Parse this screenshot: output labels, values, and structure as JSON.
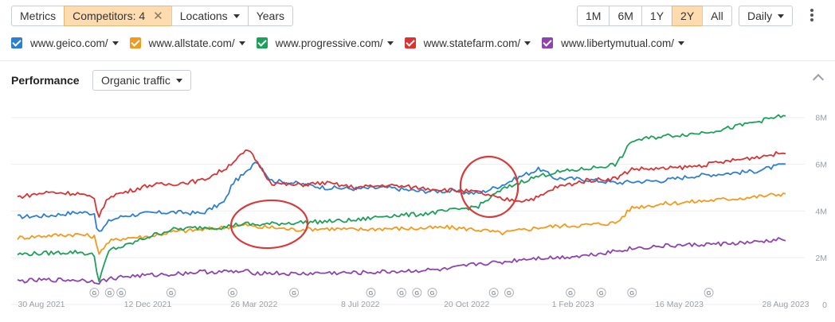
{
  "toolbar": {
    "metrics_label": "Metrics",
    "competitors_label": "Competitors: 4",
    "competitors_clear": "✕",
    "locations_label": "Locations",
    "years_label": "Years"
  },
  "range": {
    "options": [
      "1M",
      "6M",
      "1Y",
      "2Y",
      "All"
    ],
    "selected": "2Y"
  },
  "granularity": "Daily",
  "performance": {
    "title": "Performance",
    "metric": "Organic traffic"
  },
  "colors": {
    "accent_active": "#ffdcb0"
  },
  "chart_data": {
    "type": "line",
    "ylim": [
      0,
      8500000
    ],
    "y_ticks": [
      {
        "v": 0,
        "label": "0"
      },
      {
        "v": 2000000,
        "label": "2M"
      },
      {
        "v": 4000000,
        "label": "4M"
      },
      {
        "v": 6000000,
        "label": "6M"
      },
      {
        "v": 8000000,
        "label": "8M"
      }
    ],
    "x_ticks": [
      "30 Aug 2021",
      "12 Dec 2021",
      "26 Mar 2022",
      "8 Jul 2022",
      "20 Oct 2022",
      "1 Feb 2023",
      "16 May 2023",
      "28 Aug 2023"
    ],
    "x": [
      0,
      0.04,
      0.08,
      0.1,
      0.105,
      0.12,
      0.14,
      0.17,
      0.2,
      0.24,
      0.27,
      0.28,
      0.3,
      0.31,
      0.33,
      0.36,
      0.4,
      0.44,
      0.48,
      0.52,
      0.56,
      0.6,
      0.63,
      0.66,
      0.68,
      0.7,
      0.74,
      0.78,
      0.8,
      0.84,
      0.88,
      0.92,
      0.96,
      1.0
    ],
    "series": [
      {
        "name": "www.geico.com/",
        "color": "#2e7fd0",
        "values": [
          3.75,
          3.8,
          3.95,
          3.9,
          3.0,
          3.6,
          3.8,
          3.9,
          3.95,
          3.9,
          4.4,
          5.2,
          5.7,
          6.2,
          5.3,
          5.2,
          5.0,
          4.95,
          5.0,
          4.85,
          4.85,
          4.75,
          5.1,
          5.55,
          5.8,
          5.4,
          5.35,
          5.2,
          5.25,
          5.3,
          5.5,
          5.6,
          5.7,
          6.0
        ]
      },
      {
        "name": "www.allstate.com/",
        "color": "#f3991d",
        "values": [
          2.85,
          2.95,
          3.0,
          2.9,
          2.2,
          2.7,
          2.85,
          2.9,
          3.1,
          3.2,
          3.3,
          3.35,
          3.4,
          3.3,
          3.3,
          3.2,
          3.25,
          3.2,
          3.25,
          3.25,
          3.3,
          3.2,
          3.05,
          3.2,
          3.3,
          3.35,
          3.4,
          3.5,
          4.15,
          4.3,
          4.4,
          4.5,
          4.6,
          4.75
        ]
      },
      {
        "name": "www.progressive.com/",
        "color": "#1fa05a",
        "values": [
          2.15,
          2.2,
          2.25,
          2.1,
          0.95,
          2.35,
          2.5,
          2.9,
          3.2,
          3.3,
          3.3,
          3.4,
          3.45,
          3.4,
          3.45,
          3.5,
          3.55,
          3.6,
          3.8,
          3.85,
          4.0,
          4.2,
          4.9,
          5.3,
          5.5,
          5.65,
          5.8,
          6.0,
          7.0,
          7.2,
          7.3,
          7.5,
          7.8,
          8.1
        ]
      },
      {
        "name": "www.statefarm.com/",
        "color": "#da3333",
        "values": [
          4.6,
          4.8,
          4.75,
          4.5,
          3.75,
          4.65,
          4.8,
          5.1,
          5.15,
          5.3,
          5.8,
          6.1,
          6.6,
          6.2,
          5.2,
          5.1,
          5.2,
          5.0,
          5.1,
          5.0,
          4.9,
          4.8,
          4.5,
          4.45,
          4.6,
          5.0,
          5.3,
          5.4,
          5.8,
          5.8,
          5.9,
          6.1,
          6.3,
          6.5
        ]
      },
      {
        "name": "www.libertymutual.com/",
        "color": "#8e44ad",
        "values": [
          1.0,
          1.05,
          1.05,
          1.0,
          0.95,
          1.1,
          1.2,
          1.25,
          1.3,
          1.4,
          1.4,
          1.4,
          1.4,
          1.35,
          1.35,
          1.3,
          1.35,
          1.35,
          1.4,
          1.45,
          1.5,
          1.75,
          1.8,
          1.95,
          2.0,
          2.0,
          2.1,
          2.3,
          2.4,
          2.5,
          2.55,
          2.6,
          2.65,
          2.8
        ]
      }
    ],
    "value_unit_multiplier": 1000000,
    "annotation_markers": [
      "G",
      "G",
      "G",
      "G",
      "G",
      "G",
      "G",
      "G",
      "G",
      "G",
      "G",
      "G",
      "G",
      "G",
      "G",
      "G"
    ],
    "annotation_positions": [
      0.1,
      0.12,
      0.135,
      0.2,
      0.28,
      0.36,
      0.46,
      0.5,
      0.52,
      0.54,
      0.62,
      0.64,
      0.72,
      0.76,
      0.8,
      0.9
    ]
  }
}
